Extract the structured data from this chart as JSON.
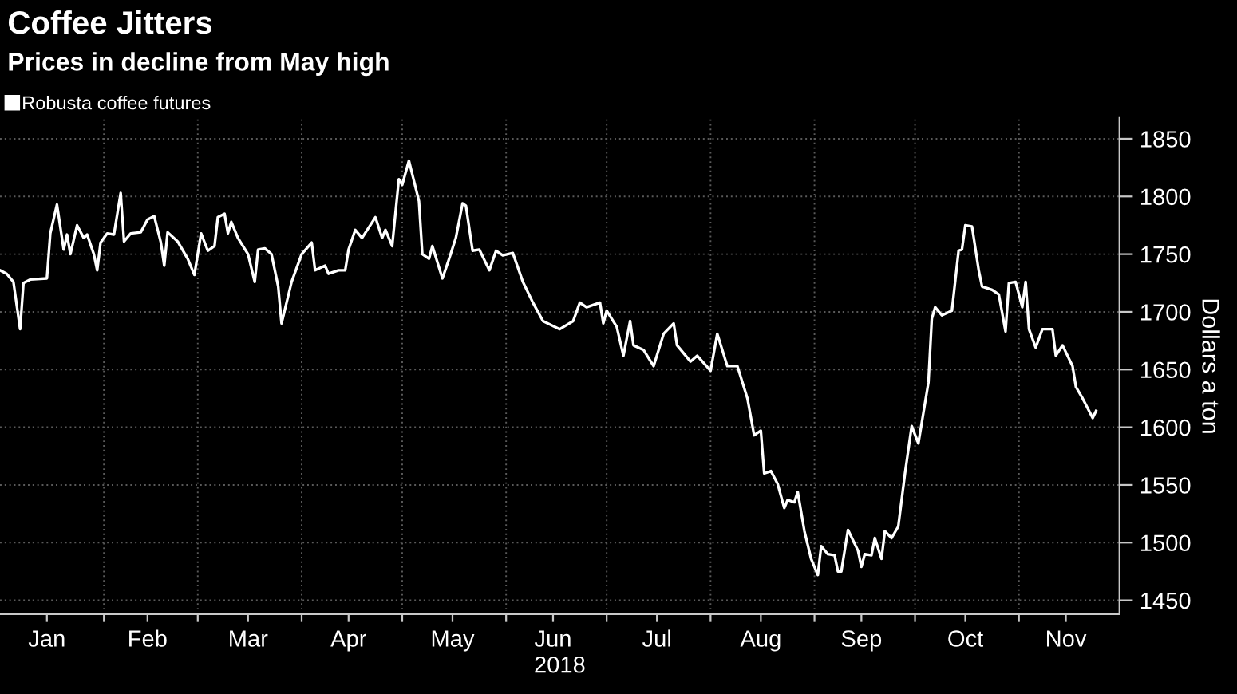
{
  "chart_data": {
    "type": "line",
    "title": "Coffee Jitters",
    "subtitle": "Prices in decline from May high",
    "xlabel": "2018",
    "ylabel": "Dollars a ton",
    "x": [
      "2018-01-01",
      "2018-01-03",
      "2018-01-05",
      "2018-01-07",
      "2018-01-08",
      "2018-01-10",
      "2018-01-15",
      "2018-01-16",
      "2018-01-18",
      "2018-01-20",
      "2018-01-21",
      "2018-01-22",
      "2018-01-24",
      "2018-01-26",
      "2018-01-27",
      "2018-01-29",
      "2018-01-30",
      "2018-01-31",
      "2018-02-02",
      "2018-02-04",
      "2018-02-06",
      "2018-02-07",
      "2018-02-09",
      "2018-02-12",
      "2018-02-14",
      "2018-02-16",
      "2018-02-18",
      "2018-02-19",
      "2018-02-20",
      "2018-02-23",
      "2018-02-26",
      "2018-02-28",
      "2018-03-02",
      "2018-03-04",
      "2018-03-06",
      "2018-03-07",
      "2018-03-09",
      "2018-03-10",
      "2018-03-11",
      "2018-03-13",
      "2018-03-16",
      "2018-03-18",
      "2018-03-19",
      "2018-03-21",
      "2018-03-23",
      "2018-03-25",
      "2018-03-26",
      "2018-03-29",
      "2018-04-01",
      "2018-04-04",
      "2018-04-05",
      "2018-04-08",
      "2018-04-09",
      "2018-04-12",
      "2018-04-14",
      "2018-04-15",
      "2018-04-17",
      "2018-04-19",
      "2018-04-23",
      "2018-04-25",
      "2018-04-26",
      "2018-04-28",
      "2018-04-30",
      "2018-05-01",
      "2018-05-03",
      "2018-05-06",
      "2018-05-07",
      "2018-05-09",
      "2018-05-10",
      "2018-05-13",
      "2018-05-15",
      "2018-05-17",
      "2018-05-19",
      "2018-05-20",
      "2018-05-22",
      "2018-05-24",
      "2018-05-27",
      "2018-05-29",
      "2018-05-31",
      "2018-06-03",
      "2018-06-06",
      "2018-06-09",
      "2018-06-12",
      "2018-06-17",
      "2018-06-21",
      "2018-06-23",
      "2018-06-25",
      "2018-06-29",
      "2018-06-30",
      "2018-07-01",
      "2018-07-04",
      "2018-07-06",
      "2018-07-08",
      "2018-07-09",
      "2018-07-12",
      "2018-07-15",
      "2018-07-18",
      "2018-07-21",
      "2018-07-22",
      "2018-07-26",
      "2018-07-28",
      "2018-08-01",
      "2018-08-03",
      "2018-08-06",
      "2018-08-09",
      "2018-08-12",
      "2018-08-14",
      "2018-08-16",
      "2018-08-17",
      "2018-08-19",
      "2018-08-21",
      "2018-08-23",
      "2018-08-24",
      "2018-08-26",
      "2018-08-27",
      "2018-08-29",
      "2018-08-31",
      "2018-09-02",
      "2018-09-03",
      "2018-09-05",
      "2018-09-07",
      "2018-09-08",
      "2018-09-09",
      "2018-09-11",
      "2018-09-14",
      "2018-09-15",
      "2018-09-16",
      "2018-09-18",
      "2018-09-19",
      "2018-09-21",
      "2018-09-22",
      "2018-09-24",
      "2018-09-26",
      "2018-09-28",
      "2018-09-30",
      "2018-10-02",
      "2018-10-05",
      "2018-10-06",
      "2018-10-07",
      "2018-10-09",
      "2018-10-12",
      "2018-10-14",
      "2018-10-15",
      "2018-10-16",
      "2018-10-18",
      "2018-10-20",
      "2018-10-21",
      "2018-10-24",
      "2018-10-26",
      "2018-10-28",
      "2018-10-29",
      "2018-10-31",
      "2018-11-02",
      "2018-11-03",
      "2018-11-04",
      "2018-11-06",
      "2018-11-08",
      "2018-11-11",
      "2018-11-12",
      "2018-11-14",
      "2018-11-17",
      "2018-11-18",
      "2018-11-20",
      "2018-11-23",
      "2018-11-24"
    ],
    "series": [
      {
        "name": "Robusta coffee futures",
        "color": "#ffffff",
        "values": [
          1736,
          1733,
          1726,
          1685,
          1725,
          1728,
          1729,
          1768,
          1793,
          1754,
          1767,
          1750,
          1775,
          1764,
          1767,
          1750,
          1736,
          1760,
          1768,
          1767,
          1803,
          1761,
          1768,
          1769,
          1780,
          1783,
          1760,
          1740,
          1769,
          1761,
          1746,
          1732,
          1768,
          1753,
          1757,
          1782,
          1785,
          1768,
          1778,
          1764,
          1750,
          1726,
          1754,
          1755,
          1750,
          1722,
          1690,
          1726,
          1750,
          1760,
          1736,
          1740,
          1733,
          1736,
          1736,
          1754,
          1771,
          1764,
          1782,
          1764,
          1771,
          1757,
          1815,
          1810,
          1831,
          1796,
          1750,
          1746,
          1757,
          1729,
          1746,
          1764,
          1794,
          1792,
          1753,
          1754,
          1736,
          1753,
          1749,
          1751,
          1726,
          1708,
          1692,
          1685,
          1692,
          1708,
          1704,
          1708,
          1690,
          1701,
          1687,
          1662,
          1692,
          1671,
          1667,
          1653,
          1681,
          1690,
          1671,
          1657,
          1662,
          1649,
          1681,
          1653,
          1653,
          1625,
          1593,
          1597,
          1560,
          1562,
          1551,
          1530,
          1537,
          1535,
          1544,
          1510,
          1486,
          1472,
          1497,
          1490,
          1489,
          1475,
          1475,
          1511,
          1493,
          1479,
          1490,
          1489,
          1504,
          1486,
          1510,
          1504,
          1514,
          1560,
          1601,
          1586,
          1639,
          1694,
          1704,
          1697,
          1701,
          1753,
          1754,
          1775,
          1774,
          1736,
          1722,
          1719,
          1715,
          1683,
          1725,
          1726,
          1704,
          1726,
          1685,
          1669,
          1685,
          1685,
          1662,
          1671,
          1653,
          1635,
          1625,
          1608,
          1614
        ]
      }
    ],
    "xlim": [
      "2018-01-01",
      "2018-12-01"
    ],
    "xticks": [
      {
        "value": "2018-01-15",
        "label": "Jan"
      },
      {
        "value": "2018-02-01",
        "label": null
      },
      {
        "value": "2018-02-14",
        "label": "Feb"
      },
      {
        "value": "2018-03-01",
        "label": null
      },
      {
        "value": "2018-03-16",
        "label": "Mar"
      },
      {
        "value": "2018-04-01",
        "label": null
      },
      {
        "value": "2018-04-15",
        "label": "Apr"
      },
      {
        "value": "2018-05-01",
        "label": null
      },
      {
        "value": "2018-05-16",
        "label": "May"
      },
      {
        "value": "2018-06-01",
        "label": null
      },
      {
        "value": "2018-06-15",
        "label": "Jun"
      },
      {
        "value": "2018-07-01",
        "label": null
      },
      {
        "value": "2018-07-16",
        "label": "Jul"
      },
      {
        "value": "2018-08-01",
        "label": null
      },
      {
        "value": "2018-08-16",
        "label": "Aug"
      },
      {
        "value": "2018-09-01",
        "label": null
      },
      {
        "value": "2018-09-15",
        "label": "Sep"
      },
      {
        "value": "2018-10-01",
        "label": null
      },
      {
        "value": "2018-10-16",
        "label": "Oct"
      },
      {
        "value": "2018-11-01",
        "label": null
      },
      {
        "value": "2018-11-15",
        "label": "Nov"
      }
    ],
    "ylim": [
      1438,
      1868
    ],
    "yticks": [
      1450,
      1500,
      1550,
      1600,
      1650,
      1700,
      1750,
      1800,
      1850
    ],
    "grid": true,
    "legend": "top left",
    "line_style": "solid",
    "marker": "none"
  }
}
